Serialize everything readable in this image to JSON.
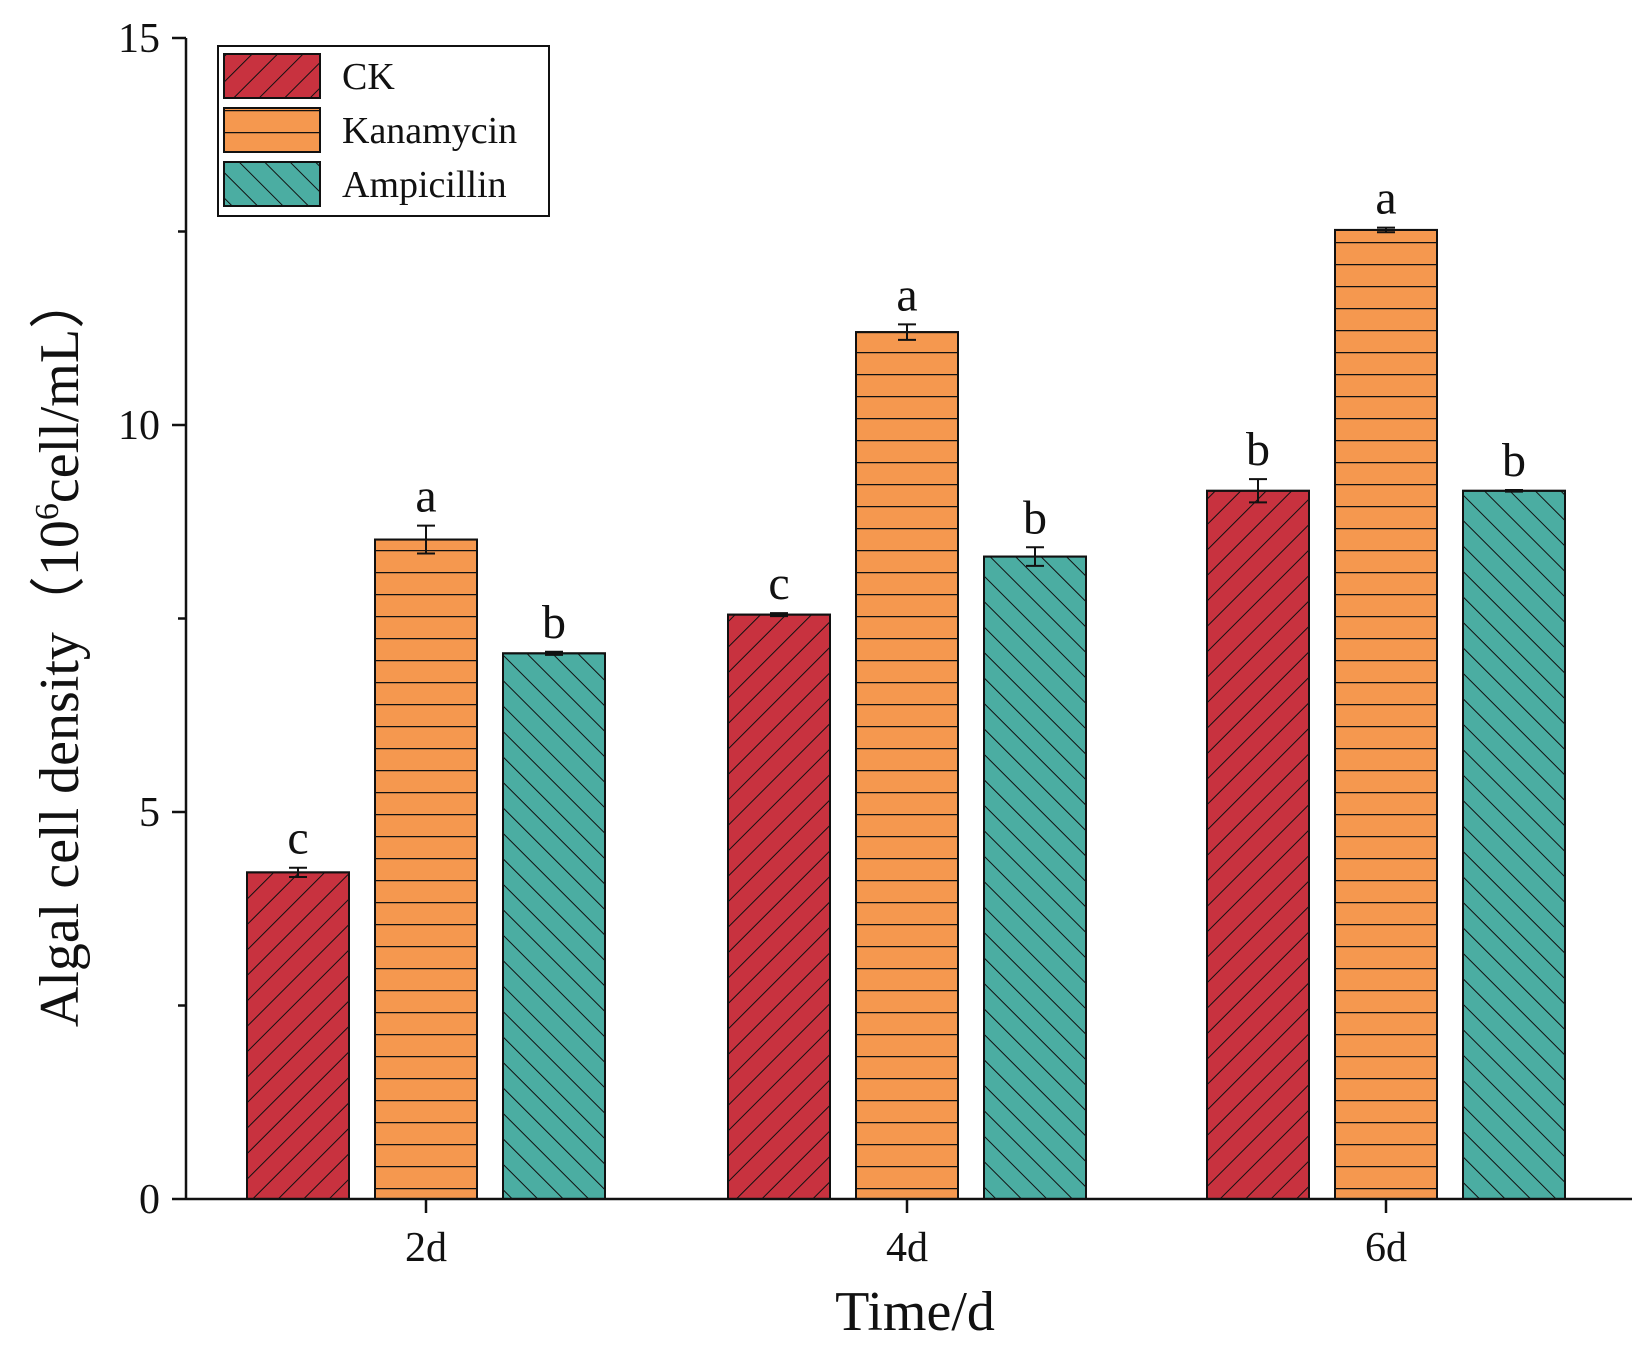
{
  "chart_data": {
    "type": "bar",
    "title": "",
    "xlabel": "Time/d",
    "ylabel_main": "Algal cell density（",
    "ylabel_base": "10",
    "ylabel_exp": "6",
    "ylabel_unit": "cell/mL）",
    "ylim": [
      0,
      15
    ],
    "major_ticks": [
      0,
      5,
      10,
      15
    ],
    "minor_ticks": [
      2.5,
      7.5,
      12.5
    ],
    "categories": [
      "2d",
      "4d",
      "6d"
    ],
    "legend_position": "top-left",
    "series": [
      {
        "name": "CK",
        "color": "#c8323f",
        "pattern": "diagonal-forward",
        "values": [
          4.22,
          7.55,
          9.15
        ],
        "errors": [
          0.06,
          0.02,
          0.15
        ],
        "letters": [
          "c",
          "c",
          "b"
        ]
      },
      {
        "name": "Kanamycin",
        "color": "#f5984f",
        "pattern": "horizontal",
        "values": [
          8.52,
          11.2,
          12.52
        ],
        "errors": [
          0.18,
          0.1,
          0.03
        ],
        "letters": [
          "a",
          "a",
          "a"
        ]
      },
      {
        "name": "Ampicillin",
        "color": "#4bada2",
        "pattern": "diagonal-back",
        "values": [
          7.05,
          8.3,
          9.15
        ],
        "errors": [
          0.02,
          0.12,
          0.01
        ],
        "letters": [
          "b",
          "b",
          "b"
        ]
      }
    ]
  }
}
